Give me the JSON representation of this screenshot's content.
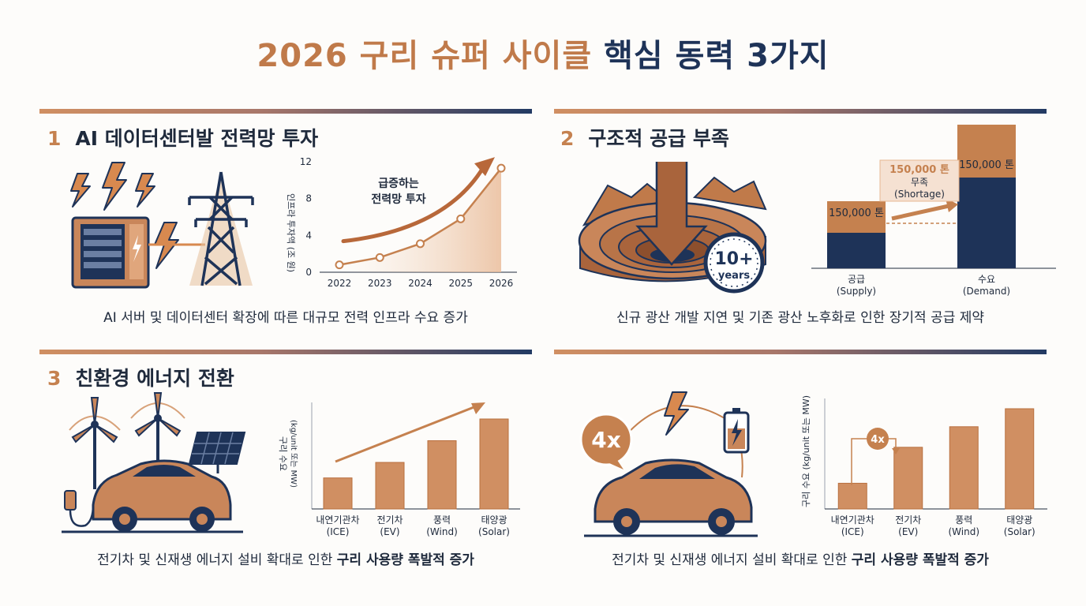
{
  "title": {
    "part1": "2026 구리 슈퍼 사이클",
    "part2": "핵심 동력 3가지"
  },
  "colors": {
    "copper": "#c5814f",
    "navy": "#1e3358",
    "dark": "#1f2a3c"
  },
  "sections": [
    {
      "number": "1",
      "heading": "AI 데이터센터발 전력망 투자",
      "caption": "AI 서버 및 데이터센터 확장에 따른 대규모 전력 인프라 수요 증가",
      "icons": [
        "lightning-icon",
        "server-rack-icon",
        "transmission-tower-icon"
      ]
    },
    {
      "number": "2",
      "heading": "구조적 공급 부족",
      "caption": "신규 광산 개발 지연 및 기존 광산 노후화로 인한 장기적 공급 제약",
      "icons": [
        "open-pit-mine-icon",
        "down-arrow-icon",
        "clock-icon"
      ],
      "clock_text": [
        "10+",
        "years"
      ]
    },
    {
      "number": "3",
      "heading": "친환경 에너지 전환",
      "caption_prefix": "전기차 및 신재생 에너지 설비 확대로 인한 ",
      "caption_bold": "구리 사용량 폭발적 증가",
      "icons": [
        "wind-turbine-icon",
        "solar-panel-icon",
        "electric-car-icon"
      ]
    },
    {
      "number": "",
      "caption_prefix": "전기차 및 신재생 에너지 설비 확대로 인한 ",
      "caption_bold": "구리 사용량 폭발적 증가",
      "icons": [
        "electric-car-icon",
        "lightning-icon",
        "battery-icon"
      ],
      "badge": "4x"
    }
  ],
  "chart_data": [
    {
      "type": "line",
      "x": [
        "2022",
        "2023",
        "2024",
        "2025",
        "2026"
      ],
      "y": [
        0.8,
        1.6,
        3.1,
        5.8,
        11.3
      ],
      "ylabel": "인프라 투자액 (조 원)",
      "yticks": [
        "0",
        "4",
        "8",
        "12"
      ],
      "ylim": [
        0,
        12
      ],
      "annotation": [
        "급증하는",
        "전력망 투자"
      ]
    },
    {
      "type": "bar",
      "stacked": true,
      "categories": [
        "공급\n(Supply)",
        "수요\n(Demand)"
      ],
      "category_lines": [
        [
          "공급",
          "(Supply)"
        ],
        [
          "수요",
          "(Demand)"
        ]
      ],
      "series": [
        {
          "name": "navy",
          "values": [
            45,
            115
          ]
        },
        {
          "name": "copper",
          "values": [
            40,
            67
          ]
        }
      ],
      "value_labels": [
        "150,000 톤",
        "150,000 톤"
      ],
      "callout": {
        "value": "150,000 톤",
        "label": "무족",
        "sub": "(Shortage)"
      }
    },
    {
      "type": "bar",
      "categories": [
        "내연기관차\n(ICE)",
        "전기차\n(EV)",
        "풍력\n(Wind)",
        "태양광\n(Solar)"
      ],
      "category_lines": [
        [
          "내연기관차",
          "(ICE)"
        ],
        [
          "전기차",
          "(EV)"
        ],
        [
          "풍력",
          "(Wind)"
        ],
        [
          "태양광",
          "(Solar)"
        ]
      ],
      "values": [
        1.0,
        1.5,
        2.2,
        2.9
      ],
      "ylabel": [
        "구리 수요",
        "(kg/unit 또는 MW)"
      ]
    },
    {
      "type": "bar",
      "categories": [
        "내연기관차\n(ICE)",
        "전기차\n(EV)",
        "풍력\n(Wind)",
        "태양광\n(Solar)"
      ],
      "category_lines": [
        [
          "내연기관차",
          "(ICE)"
        ],
        [
          "전기차",
          "(EV)"
        ],
        [
          "풍력",
          "(Wind)"
        ],
        [
          "태양광",
          "(Solar)"
        ]
      ],
      "values": [
        1.0,
        2.4,
        3.2,
        3.9
      ],
      "ylabel": "구리 수요 (kg/unit 또는 MW)",
      "annotation": "4x"
    }
  ]
}
